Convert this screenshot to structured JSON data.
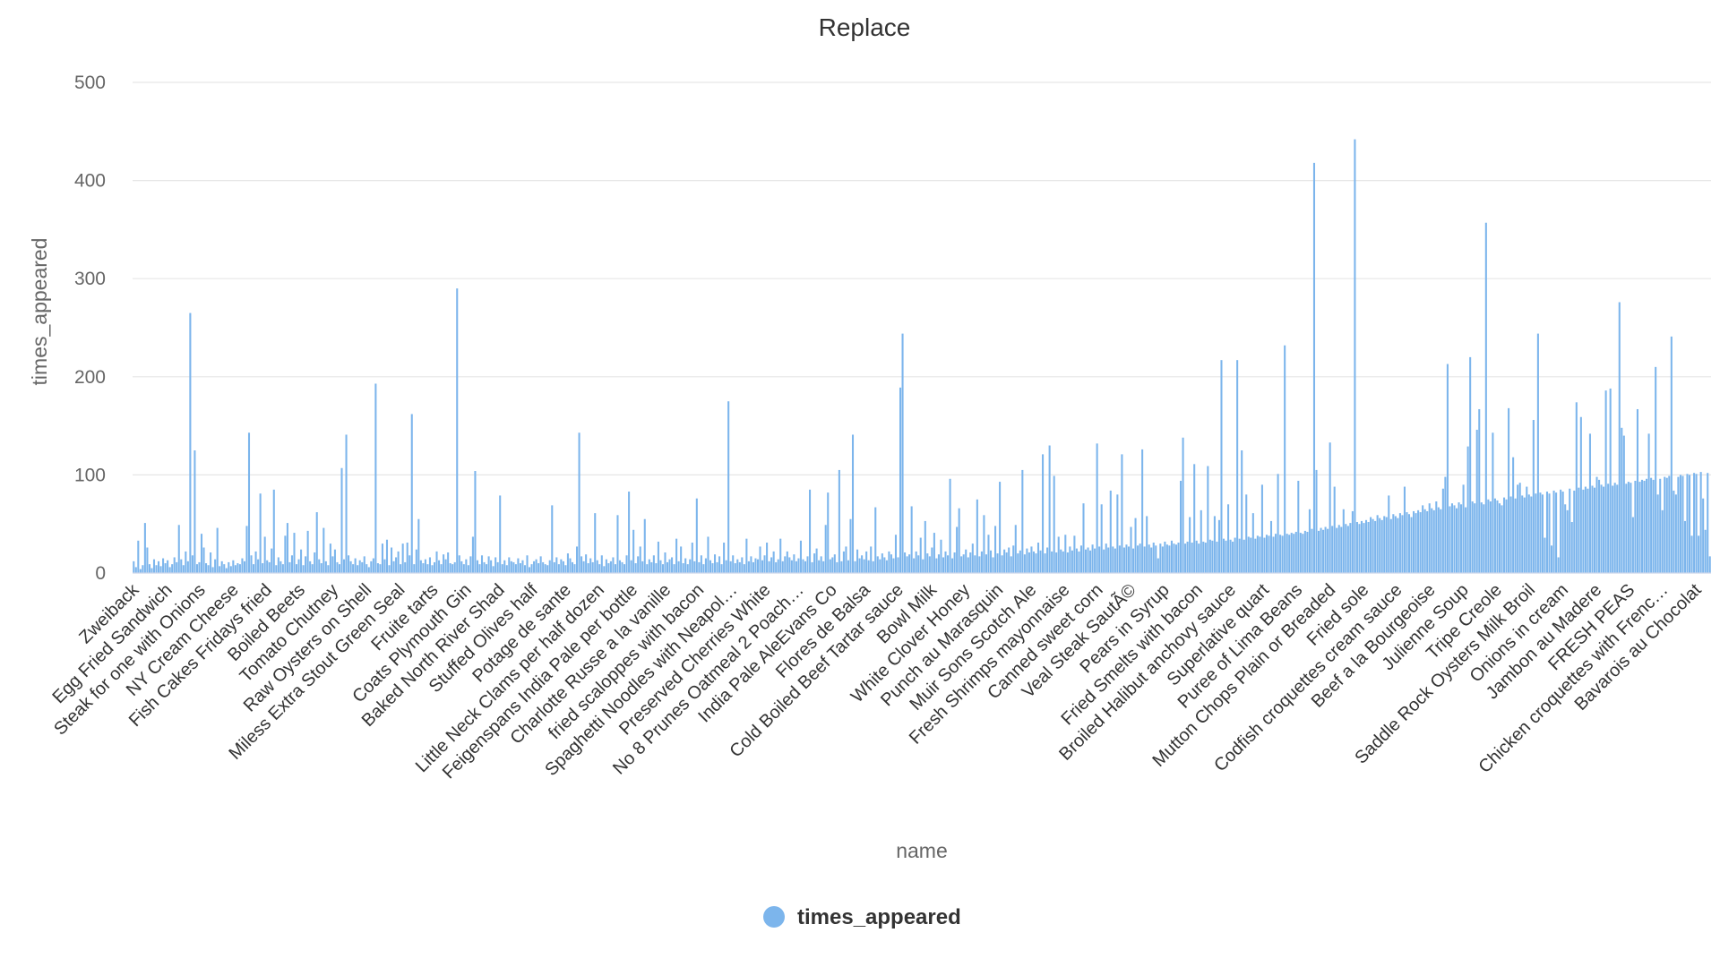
{
  "chart_data": {
    "type": "bar",
    "title": "Replace",
    "xlabel": "name",
    "ylabel": "times_appeared",
    "ylim": [
      0,
      500
    ],
    "yticks": [
      0,
      100,
      200,
      300,
      400,
      500
    ],
    "grid": true,
    "legend_position": "bottom-center",
    "series": [
      {
        "name": "times_appeared",
        "color": "#7cb5ec",
        "values": [
          12,
          6,
          33,
          4,
          8,
          51,
          26,
          9,
          5,
          14,
          8,
          12,
          7,
          15,
          10,
          13,
          6,
          9,
          16,
          11,
          49,
          14,
          8,
          22,
          12,
          265,
          18,
          125,
          9,
          11,
          40,
          26,
          10,
          8,
          21,
          6,
          14,
          46,
          7,
          12,
          9,
          5,
          11,
          7,
          13,
          8,
          10,
          9,
          15,
          12,
          48,
          143,
          18,
          9,
          22,
          14,
          81,
          10,
          37,
          13,
          11,
          25,
          85,
          8,
          16,
          12,
          9,
          38,
          51,
          11,
          18,
          41,
          9,
          14,
          24,
          8,
          17,
          43,
          12,
          9,
          21,
          62,
          14,
          10,
          46,
          12,
          8,
          30,
          17,
          24,
          11,
          9,
          107,
          14,
          141,
          18,
          12,
          9,
          15,
          8,
          13,
          11,
          17,
          9,
          6,
          12,
          15,
          193,
          10,
          9,
          30,
          14,
          34,
          8,
          26,
          12,
          16,
          22,
          9,
          30,
          11,
          31,
          18,
          162,
          9,
          24,
          55,
          13,
          10,
          14,
          9,
          16,
          8,
          11,
          22,
          13,
          9,
          19,
          14,
          21,
          10,
          9,
          11,
          290,
          18,
          12,
          9,
          14,
          8,
          17,
          37,
          104,
          13,
          9,
          18,
          11,
          9,
          17,
          13,
          7,
          16,
          11,
          79,
          9,
          13,
          8,
          16,
          12,
          11,
          9,
          15,
          10,
          13,
          8,
          18,
          6,
          9,
          12,
          14,
          10,
          17,
          11,
          9,
          8,
          13,
          69,
          11,
          16,
          9,
          14,
          12,
          8,
          20,
          15,
          11,
          9,
          27,
          143,
          17,
          12,
          19,
          10,
          15,
          11,
          61,
          13,
          9,
          18,
          7,
          14,
          10,
          12,
          16,
          9,
          59,
          13,
          11,
          9,
          18,
          83,
          13,
          44,
          10,
          17,
          27,
          12,
          55,
          9,
          14,
          11,
          18,
          10,
          32,
          13,
          9,
          21,
          11,
          14,
          16,
          9,
          35,
          12,
          27,
          10,
          15,
          9,
          14,
          31,
          12,
          76,
          11,
          18,
          9,
          15,
          37,
          13,
          10,
          19,
          11,
          17,
          9,
          31,
          13,
          175,
          12,
          18,
          10,
          14,
          11,
          16,
          9,
          35,
          12,
          17,
          11,
          15,
          14,
          27,
          13,
          18,
          31,
          12,
          16,
          22,
          11,
          14,
          35,
          12,
          17,
          22,
          16,
          13,
          19,
          12,
          15,
          33,
          14,
          12,
          17,
          85,
          11,
          20,
          25,
          13,
          17,
          12,
          49,
          82,
          14,
          16,
          19,
          11,
          105,
          12,
          22,
          27,
          13,
          55,
          141,
          12,
          24,
          15,
          18,
          14,
          22,
          13,
          27,
          12,
          67,
          17,
          14,
          20,
          16,
          13,
          22,
          19,
          15,
          39,
          16,
          189,
          244,
          21,
          17,
          19,
          68,
          15,
          22,
          18,
          36,
          14,
          53,
          20,
          17,
          26,
          41,
          15,
          19,
          34,
          16,
          22,
          18,
          96,
          15,
          21,
          47,
          66,
          17,
          19,
          24,
          16,
          21,
          30,
          18,
          75,
          17,
          22,
          59,
          19,
          39,
          23,
          16,
          48,
          20,
          93,
          18,
          24,
          21,
          26,
          17,
          28,
          49,
          20,
          23,
          105,
          19,
          25,
          21,
          27,
          22,
          20,
          31,
          23,
          121,
          20,
          26,
          130,
          22,
          99,
          21,
          37,
          24,
          22,
          39,
          21,
          27,
          23,
          38,
          25,
          22,
          28,
          71,
          24,
          26,
          23,
          29,
          25,
          132,
          27,
          70,
          24,
          30,
          26,
          84,
          27,
          25,
          80,
          28,
          121,
          26,
          29,
          27,
          47,
          25,
          56,
          28,
          30,
          126,
          27,
          58,
          29,
          26,
          31,
          28,
          15,
          30,
          27,
          32,
          29,
          28,
          33,
          30,
          29,
          31,
          94,
          138,
          30,
          32,
          57,
          31,
          111,
          33,
          30,
          64,
          32,
          31,
          109,
          34,
          33,
          58,
          32,
          54,
          217,
          35,
          33,
          70,
          34,
          32,
          36,
          217,
          35,
          125,
          34,
          80,
          37,
          36,
          61,
          35,
          38,
          37,
          90,
          36,
          39,
          38,
          53,
          37,
          40,
          101,
          39,
          38,
          232,
          40,
          39,
          41,
          40,
          42,
          94,
          41,
          40,
          43,
          42,
          65,
          45,
          418,
          105,
          43,
          46,
          44,
          47,
          45,
          133,
          48,
          88,
          46,
          49,
          47,
          65,
          50,
          48,
          51,
          63,
          442,
          52,
          50,
          53,
          51,
          54,
          52,
          57,
          55,
          53,
          59,
          56,
          54,
          58,
          57,
          79,
          55,
          60,
          58,
          56,
          61,
          59,
          88,
          62,
          60,
          57,
          63,
          61,
          64,
          62,
          69,
          65,
          63,
          71,
          66,
          64,
          73,
          67,
          65,
          86,
          98,
          213,
          68,
          71,
          69,
          66,
          72,
          70,
          90,
          67,
          129,
          220,
          73,
          71,
          146,
          167,
          72,
          70,
          357,
          75,
          73,
          143,
          76,
          74,
          71,
          69,
          77,
          75,
          168,
          78,
          118,
          76,
          90,
          92,
          79,
          77,
          88,
          80,
          78,
          156,
          81,
          244,
          82,
          80,
          36,
          83,
          81,
          28,
          84,
          82,
          16,
          85,
          83,
          70,
          64,
          86,
          52,
          84,
          174,
          87,
          159,
          85,
          88,
          86,
          142,
          89,
          87,
          98,
          95,
          90,
          88,
          186,
          91,
          188,
          89,
          92,
          90,
          276,
          148,
          140,
          91,
          93,
          92,
          57,
          94,
          167,
          93,
          95,
          94,
          96,
          142,
          97,
          95,
          210,
          80,
          96,
          64,
          98,
          97,
          99,
          241,
          84,
          80,
          98,
          100,
          99,
          53,
          101,
          100,
          38,
          102,
          101,
          38,
          103,
          76,
          44,
          102,
          17
        ]
      }
    ],
    "x_tick_labels": [
      "Zweiback",
      "Egg Fried Sandwich",
      "Steak for one with Onions",
      "NY Cream Cheese",
      "Fish Cakes Fridays fried",
      "Boiled Beets",
      "Tomato Chutney",
      "Raw Oysters on Shell",
      "Miless Extra Stout Green Seal",
      "Fruite tarts",
      "Coats Plymouth Gin",
      "Baked North River Shad",
      "Stuffed Olives half",
      "Potage de sante",
      "Little Neck Clams per half dozen",
      "Feigenspans India Pale per bottle",
      "Charlotte Russe a la vanille",
      "fried scaloppes with bacon",
      "Spaghetti Noodles with Neapol…",
      "Preserved Cherries White",
      "No 8 Prunes Oatmeal 2 Poach…",
      "India Pale AleEvans Co",
      "Flores de Balsa",
      "Cold Boiled Beef Tartar sauce",
      "Bowl Milk",
      "White Clover Honey",
      "Punch au Marasquin",
      "Muir Sons Scotch Ale",
      "Fresh Shrimps mayonnaise",
      "Canned sweet corn",
      "Veal Steak SautÃ©",
      "Pears in Syrup",
      "Fried Smelts with bacon",
      "Broiled Halibut anchovy sauce",
      "Superlative quart",
      "Puree of Lima Beans",
      "Mutton Chops Plain or Breaded",
      "Fried sole",
      "Codfish croquettes cream sauce",
      "Beef a la Bourgeoise",
      "Julienne Soup",
      "Tripe Creole",
      "Saddle Rock Oysters Milk Broil",
      "Onions in cream",
      "Jambon au Madere",
      "FRESH PEAS",
      "Chicken croquettes with Frenc…",
      "Bavarois au Chocolat"
    ]
  }
}
